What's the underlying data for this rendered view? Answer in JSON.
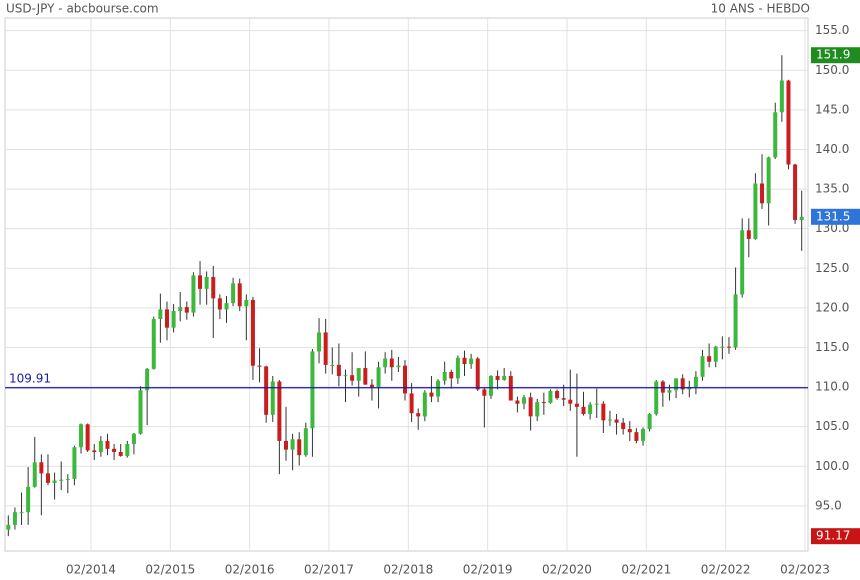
{
  "chart_data": {
    "type": "candlestick",
    "title": "USD-JPY - abcbourse.com",
    "subtitle": "10 ANS - HEBDO",
    "up_color": "#3cb83c",
    "down_color": "#c81e1e",
    "grid": true,
    "x": [
      "01/2013",
      "02/2013",
      "03/2013",
      "04/2013",
      "05/2013",
      "06/2013",
      "07/2013",
      "08/2013",
      "09/2013",
      "10/2013",
      "11/2013",
      "12/2013",
      "01/2014",
      "02/2014",
      "03/2014",
      "04/2014",
      "05/2014",
      "06/2014",
      "07/2014",
      "08/2014",
      "09/2014",
      "10/2014",
      "11/2014",
      "12/2014",
      "01/2015",
      "02/2015",
      "03/2015",
      "04/2015",
      "05/2015",
      "06/2015",
      "07/2015",
      "08/2015",
      "09/2015",
      "10/2015",
      "11/2015",
      "12/2015",
      "01/2016",
      "02/2016",
      "03/2016",
      "04/2016",
      "05/2016",
      "06/2016",
      "07/2016",
      "08/2016",
      "09/2016",
      "10/2016",
      "11/2016",
      "12/2016",
      "01/2017",
      "02/2017",
      "03/2017",
      "04/2017",
      "05/2017",
      "06/2017",
      "07/2017",
      "08/2017",
      "09/2017",
      "10/2017",
      "11/2017",
      "12/2017",
      "01/2018",
      "02/2018",
      "03/2018",
      "04/2018",
      "05/2018",
      "06/2018",
      "07/2018",
      "08/2018",
      "09/2018",
      "10/2018",
      "11/2018",
      "12/2018",
      "01/2019",
      "02/2019",
      "03/2019",
      "04/2019",
      "05/2019",
      "06/2019",
      "07/2019",
      "08/2019",
      "09/2019",
      "10/2019",
      "11/2019",
      "12/2019",
      "01/2020",
      "02/2020",
      "03/2020",
      "04/2020",
      "05/2020",
      "06/2020",
      "07/2020",
      "08/2020",
      "09/2020",
      "10/2020",
      "11/2020",
      "12/2020",
      "01/2021",
      "02/2021",
      "03/2021",
      "04/2021",
      "05/2021",
      "06/2021",
      "07/2021",
      "08/2021",
      "09/2021",
      "10/2021",
      "11/2021",
      "12/2021",
      "01/2022",
      "02/2022",
      "03/2022",
      "04/2022",
      "05/2022",
      "06/2022",
      "07/2022",
      "08/2022",
      "09/2022",
      "10/2022",
      "11/2022",
      "12/2022",
      "01/2023"
    ],
    "open": [
      92.0,
      92.6,
      94.2,
      94.2,
      97.4,
      100.5,
      99.1,
      97.9,
      98.2,
      98.3,
      98.4,
      102.4,
      105.3,
      102.0,
      101.8,
      103.2,
      102.2,
      101.8,
      101.3,
      102.8,
      104.1,
      109.6,
      112.3,
      118.6,
      119.8,
      117.5,
      119.6,
      120.1,
      119.4,
      124.1,
      122.4,
      123.9,
      121.2,
      119.8,
      120.6,
      123.1,
      120.2,
      121.0,
      112.7,
      112.6,
      106.5,
      110.7,
      103.2,
      102.1,
      103.4,
      101.4,
      104.8,
      114.5,
      116.9,
      112.8,
      112.8,
      111.4,
      111.5,
      110.8,
      112.4,
      110.3,
      110.0,
      112.5,
      113.6,
      112.5,
      112.7,
      109.2,
      106.7,
      106.3,
      109.3,
      108.8,
      110.8,
      111.9,
      111.1,
      113.7,
      112.9,
      113.6,
      109.7,
      108.9,
      111.4,
      110.9,
      111.4,
      108.3,
      107.9,
      108.7,
      106.3,
      108.1,
      108.0,
      109.5,
      108.6,
      108.4,
      107.9,
      107.5,
      106.6,
      107.8,
      107.9,
      105.8,
      105.9,
      105.5,
      104.7,
      104.3,
      103.2,
      104.7,
      106.6,
      110.7,
      109.3,
      109.6,
      111.1,
      109.7,
      110.0,
      111.3,
      113.9,
      113.2,
      115.1,
      115.1,
      115.0,
      121.7,
      129.8,
      128.7,
      135.7,
      133.2,
      139.0,
      144.7,
      148.7,
      138.1,
      131.1
    ],
    "high": [
      93.8,
      94.8,
      96.7,
      99.9,
      103.7,
      101.5,
      101.5,
      99.2,
      100.6,
      99.0,
      102.6,
      105.4,
      105.4,
      102.8,
      103.8,
      104.1,
      102.8,
      102.8,
      103.2,
      104.2,
      110.1,
      112.4,
      118.9,
      121.8,
      120.8,
      120.5,
      122.0,
      120.8,
      124.5,
      125.9,
      124.6,
      125.3,
      121.7,
      121.5,
      123.8,
      123.7,
      121.7,
      121.4,
      114.9,
      112.7,
      111.4,
      110.9,
      107.5,
      104.1,
      104.3,
      105.5,
      114.8,
      118.7,
      118.6,
      115.0,
      115.5,
      112.2,
      114.4,
      112.4,
      114.5,
      111.0,
      113.2,
      114.4,
      114.7,
      113.8,
      113.4,
      110.5,
      107.3,
      109.6,
      111.4,
      111.0,
      113.2,
      112.2,
      114.0,
      114.6,
      114.2,
      113.8,
      110.0,
      111.5,
      112.1,
      112.4,
      112.0,
      108.8,
      109.0,
      109.3,
      108.5,
      109.3,
      109.7,
      109.7,
      110.3,
      112.2,
      111.7,
      109.4,
      108.1,
      109.8,
      108.2,
      107.0,
      106.6,
      106.1,
      105.7,
      104.8,
      104.9,
      106.7,
      110.9,
      110.9,
      110.3,
      111.1,
      111.6,
      110.8,
      112.0,
      114.7,
      115.5,
      115.2,
      116.4,
      116.3,
      125.1,
      131.3,
      131.3,
      137.0,
      139.4,
      139.1,
      145.9,
      151.9,
      148.8,
      138.2,
      134.8
    ],
    "low": [
      91.17,
      92.0,
      92.6,
      92.6,
      97.3,
      93.8,
      97.6,
      95.8,
      97.0,
      96.6,
      97.6,
      101.6,
      101.8,
      100.8,
      101.2,
      101.4,
      100.8,
      101.2,
      101.1,
      101.5,
      104.0,
      105.2,
      112.2,
      115.6,
      115.9,
      116.9,
      118.3,
      118.5,
      118.9,
      120.4,
      120.4,
      116.2,
      118.6,
      118.1,
      120.2,
      119.6,
      115.9,
      110.9,
      110.6,
      105.5,
      105.6,
      99.0,
      100.7,
      99.5,
      100.1,
      101.2,
      101.2,
      113.0,
      111.7,
      111.6,
      110.1,
      108.1,
      110.2,
      108.8,
      110.6,
      108.3,
      107.3,
      111.7,
      110.8,
      111.9,
      108.3,
      105.6,
      104.6,
      105.7,
      108.1,
      108.1,
      110.3,
      109.8,
      110.4,
      111.4,
      112.3,
      109.5,
      104.9,
      108.5,
      109.7,
      110.8,
      108.3,
      106.8,
      107.2,
      104.5,
      105.7,
      106.5,
      107.9,
      108.4,
      107.6,
      107.0,
      101.2,
      106.4,
      105.9,
      106.1,
      104.2,
      105.1,
      104.0,
      104.0,
      103.2,
      102.9,
      102.6,
      104.4,
      106.4,
      107.5,
      108.3,
      108.6,
      109.1,
      108.7,
      109.1,
      110.8,
      112.5,
      112.5,
      113.5,
      114.2,
      114.7,
      121.3,
      126.4,
      128.6,
      132.5,
      130.4,
      138.8,
      143.5,
      137.5,
      130.6,
      127.2
    ],
    "close": [
      92.6,
      94.2,
      94.2,
      97.4,
      100.5,
      99.1,
      97.9,
      98.2,
      98.3,
      98.4,
      102.4,
      105.3,
      102.0,
      101.8,
      103.2,
      102.2,
      101.8,
      101.3,
      102.8,
      104.1,
      109.6,
      112.3,
      118.6,
      119.8,
      117.5,
      119.6,
      120.1,
      119.4,
      124.1,
      122.4,
      123.9,
      121.2,
      119.8,
      120.6,
      123.1,
      120.2,
      121.0,
      112.7,
      112.6,
      106.5,
      110.7,
      103.2,
      102.1,
      103.4,
      101.4,
      104.8,
      114.5,
      116.9,
      112.8,
      112.8,
      111.4,
      111.5,
      110.8,
      112.4,
      110.3,
      110.0,
      112.5,
      113.6,
      112.5,
      112.7,
      109.2,
      106.7,
      106.3,
      109.3,
      108.8,
      110.8,
      111.9,
      111.1,
      113.7,
      112.9,
      113.6,
      109.7,
      108.9,
      111.4,
      110.9,
      111.4,
      108.3,
      107.9,
      108.7,
      106.3,
      108.1,
      108.0,
      109.5,
      108.6,
      108.4,
      107.9,
      107.5,
      106.6,
      107.8,
      107.9,
      105.8,
      105.9,
      105.5,
      104.7,
      104.3,
      103.2,
      104.7,
      106.6,
      110.7,
      109.3,
      109.6,
      111.1,
      109.7,
      110.0,
      111.3,
      113.9,
      113.2,
      115.1,
      115.1,
      115.0,
      121.7,
      129.8,
      128.7,
      135.7,
      133.2,
      139.0,
      144.7,
      148.7,
      138.1,
      131.1,
      131.5
    ],
    "xlim": [
      "01/2013",
      "02/2023"
    ],
    "xticks": [
      "02/2014",
      "02/2015",
      "02/2016",
      "02/2017",
      "02/2018",
      "02/2019",
      "02/2020",
      "02/2021",
      "02/2022",
      "02/2023"
    ],
    "ylim": [
      89.3,
      156.6
    ],
    "yticks": [
      {
        "value": 95,
        "label": "95.0"
      },
      {
        "value": 100,
        "label": "100.0"
      },
      {
        "value": 105,
        "label": "105.0"
      },
      {
        "value": 110,
        "label": "110.0"
      },
      {
        "value": 115,
        "label": "115.0"
      },
      {
        "value": 120,
        "label": "120.0"
      },
      {
        "value": 125,
        "label": "125.0"
      },
      {
        "value": 130,
        "label": "130.0"
      },
      {
        "value": 135,
        "label": "135.0"
      },
      {
        "value": 140,
        "label": "140.0"
      },
      {
        "value": 145,
        "label": "145.0"
      },
      {
        "value": 150,
        "label": "150.0"
      },
      {
        "value": 155,
        "label": "155.0"
      }
    ],
    "high_marker": 151.9,
    "last_marker": 131.5,
    "low_marker": 91.17,
    "reference_line": 109.91
  }
}
